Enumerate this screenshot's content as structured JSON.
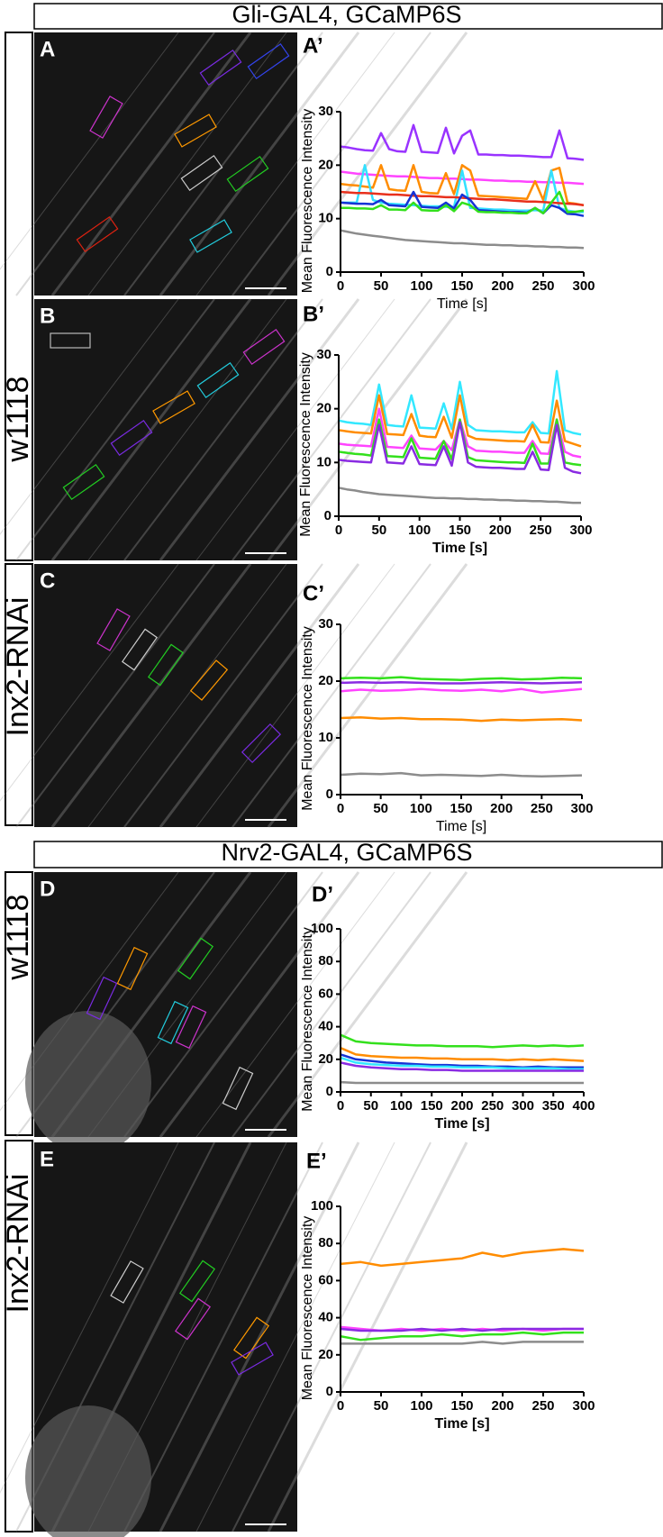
{
  "headers": [
    "Gli-GAL4, GCaMP6S",
    "Nrv2-GAL4, GCaMP6S"
  ],
  "row_labels": [
    "w1118",
    "Inx2-RNAi",
    "w1118",
    "Inx2-RNAi"
  ],
  "image_panels": [
    "A",
    "B",
    "C",
    "D",
    "E"
  ],
  "chart_data": [
    {
      "type": "line",
      "label": "A’",
      "xlabel": "Time [s]",
      "ylabel": "Mean Fluorescence Intensity",
      "x": [
        0,
        10,
        20,
        30,
        40,
        50,
        60,
        70,
        80,
        90,
        100,
        110,
        120,
        130,
        140,
        150,
        160,
        170,
        180,
        190,
        200,
        210,
        220,
        230,
        240,
        250,
        260,
        270,
        280,
        290,
        300
      ],
      "xlim": [
        0,
        300
      ],
      "xticks": [
        0,
        50,
        100,
        150,
        200,
        250,
        300
      ],
      "ylim": [
        0,
        30
      ],
      "yticks": [
        0,
        10,
        20,
        30
      ],
      "series": [
        {
          "color": "#9933ff",
          "values": [
            23.5,
            23.3,
            23,
            22.8,
            22.7,
            26,
            23,
            22.6,
            22.5,
            27.5,
            22.5,
            22.4,
            22.3,
            27,
            22.2,
            25.5,
            26.5,
            22,
            22,
            21.9,
            21.9,
            21.8,
            21.8,
            21.7,
            21.6,
            21.5,
            21.5,
            26.5,
            21.3,
            21.2,
            21
          ]
        },
        {
          "color": "#ff44ff",
          "values": [
            18.8,
            18.6,
            18.4,
            18.3,
            18.2,
            18.1,
            18,
            17.9,
            17.9,
            17.8,
            17.7,
            17.6,
            17.6,
            17.5,
            17.5,
            17.4,
            17.3,
            17.3,
            17.2,
            17.1,
            17.1,
            17,
            17,
            16.9,
            16.9,
            16.8,
            16.8,
            16.7,
            16.7,
            16.6,
            16.5
          ]
        },
        {
          "color": "#ff8c00",
          "values": [
            16.5,
            16.3,
            16.2,
            16,
            15.8,
            20,
            15.5,
            15.3,
            15.2,
            20,
            15,
            14.8,
            14.7,
            18.5,
            14.6,
            20,
            19,
            14.3,
            14.2,
            14.1,
            14,
            13.9,
            13.8,
            13.7,
            17,
            13.5,
            19,
            19.5,
            13,
            12.8,
            12.5
          ]
        },
        {
          "color": "#33e0ff",
          "values": [
            13,
            13,
            13,
            20,
            13.5,
            13,
            12.8,
            12.7,
            12.6,
            12.5,
            12.4,
            12.3,
            12.3,
            12.2,
            12.2,
            19,
            12,
            11.9,
            11.8,
            11.7,
            11.7,
            11.6,
            11.5,
            11.5,
            11.6,
            11.5,
            19,
            12,
            11.5,
            11.3,
            11.2
          ]
        },
        {
          "color": "#e8301c",
          "values": [
            15,
            14.9,
            14.8,
            14.8,
            14.7,
            14.6,
            14.5,
            14.5,
            14.4,
            14.3,
            14.2,
            14.2,
            14.1,
            14,
            14,
            13.9,
            13.8,
            13.7,
            13.6,
            13.6,
            13.5,
            13.4,
            13.3,
            13.2,
            13.2,
            13.1,
            13,
            12.9,
            12.8,
            12.7,
            12.5
          ]
        },
        {
          "color": "#1533d6",
          "values": [
            13,
            12.9,
            12.8,
            12.8,
            12.7,
            13.5,
            12.5,
            12.4,
            12.3,
            15,
            12.2,
            12.1,
            12,
            13,
            11.9,
            14.5,
            13.5,
            11.6,
            11.5,
            11.4,
            11.3,
            11.2,
            11.2,
            11.1,
            12,
            11,
            12.5,
            12,
            10.9,
            10.8,
            10.5
          ]
        },
        {
          "color": "#33e01c",
          "values": [
            12,
            12,
            11.9,
            11.9,
            11.8,
            12.5,
            11.7,
            11.7,
            11.6,
            13,
            11.6,
            11.5,
            11.5,
            12.5,
            11.4,
            13,
            12.5,
            11.3,
            11.2,
            11.2,
            11.1,
            11.1,
            11,
            11,
            12,
            11,
            13,
            15,
            11.2,
            11.3,
            11.5
          ]
        },
        {
          "color": "#8c8c8c",
          "values": [
            7.8,
            7.5,
            7.2,
            7,
            6.8,
            6.6,
            6.4,
            6.2,
            6,
            5.9,
            5.8,
            5.7,
            5.6,
            5.5,
            5.4,
            5.4,
            5.3,
            5.2,
            5.1,
            5.1,
            5,
            5,
            4.9,
            4.9,
            4.8,
            4.8,
            4.7,
            4.7,
            4.6,
            4.6,
            4.5
          ]
        }
      ]
    },
    {
      "type": "line",
      "label": "B’",
      "xlabel": "Time [s]",
      "ylabel": "Mean Fluorescence Intensity",
      "x": [
        0,
        10,
        20,
        30,
        40,
        50,
        60,
        70,
        80,
        90,
        100,
        110,
        120,
        130,
        140,
        150,
        160,
        170,
        180,
        190,
        200,
        210,
        220,
        230,
        240,
        250,
        260,
        270,
        280,
        290,
        300
      ],
      "xlim": [
        0,
        300
      ],
      "xticks": [
        0,
        50,
        100,
        150,
        200,
        250,
        300
      ],
      "ylim": [
        0,
        30
      ],
      "yticks": [
        0,
        10,
        20,
        30
      ],
      "series": [
        {
          "color": "#33e8ff",
          "values": [
            17.8,
            17.5,
            17.3,
            17.2,
            17,
            24.5,
            17,
            16.8,
            16.7,
            22.5,
            16.5,
            16.4,
            16.3,
            21,
            16.2,
            25,
            17,
            16,
            15.9,
            15.8,
            15.8,
            15.7,
            15.6,
            15.6,
            17.5,
            15.5,
            15.4,
            27,
            16,
            15.5,
            15.2
          ]
        },
        {
          "color": "#ff8c00",
          "values": [
            16,
            15.8,
            15.6,
            15.5,
            15.4,
            22.5,
            15.3,
            15.2,
            15.1,
            19,
            15,
            14.8,
            14.7,
            18.5,
            14.6,
            22.5,
            15,
            14.4,
            14.3,
            14.2,
            14.1,
            14,
            14,
            13.9,
            17,
            13.8,
            13.7,
            21.5,
            14,
            13.5,
            13
          ]
        },
        {
          "color": "#ff44ff",
          "values": [
            13.5,
            13.3,
            13.2,
            13.1,
            13,
            20,
            12.9,
            12.8,
            12.7,
            15,
            12.6,
            12.5,
            12.4,
            14,
            12.3,
            18,
            13,
            12.2,
            12.1,
            12,
            12,
            11.9,
            11.8,
            11.8,
            14,
            11.7,
            11.6,
            18,
            12,
            11.3,
            11
          ]
        },
        {
          "color": "#33e01c",
          "values": [
            12,
            11.8,
            11.6,
            11.5,
            11.3,
            18,
            11.2,
            11.1,
            11,
            14.5,
            10.9,
            10.8,
            10.7,
            14,
            10.6,
            18,
            11,
            10.4,
            10.3,
            10.2,
            10.1,
            10,
            10,
            9.9,
            13.5,
            9.8,
            9.8,
            18,
            10,
            9.7,
            9.5
          ]
        },
        {
          "color": "#8a2be2",
          "values": [
            10.5,
            10.3,
            10.2,
            10.1,
            10,
            17,
            10,
            9.9,
            9.8,
            13,
            9.7,
            9.6,
            9.5,
            13,
            9.4,
            17.5,
            10,
            9.2,
            9.1,
            9,
            9,
            8.9,
            8.8,
            8.8,
            12,
            8.7,
            8.6,
            17,
            9,
            8.3,
            8
          ]
        },
        {
          "color": "#8c8c8c",
          "values": [
            5.3,
            5,
            4.8,
            4.5,
            4.3,
            4.1,
            4,
            3.9,
            3.8,
            3.7,
            3.6,
            3.5,
            3.4,
            3.4,
            3.3,
            3.3,
            3.2,
            3.2,
            3.1,
            3.1,
            3,
            3,
            2.9,
            2.9,
            2.8,
            2.8,
            2.7,
            2.7,
            2.6,
            2.5,
            2.5
          ]
        }
      ]
    },
    {
      "type": "line",
      "label": "C’",
      "xlabel": "Time [s]",
      "ylabel": "Mean Fluorescence Intensity",
      "x": [
        0,
        25,
        50,
        75,
        100,
        125,
        150,
        175,
        200,
        225,
        250,
        275,
        300
      ],
      "xlim": [
        0,
        300
      ],
      "xticks": [
        0,
        50,
        100,
        150,
        200,
        250,
        300
      ],
      "ylim": [
        0,
        30
      ],
      "yticks": [
        0,
        10,
        20,
        30
      ],
      "series": [
        {
          "color": "#33e01c",
          "values": [
            20.5,
            20.6,
            20.5,
            20.7,
            20.4,
            20.3,
            20.2,
            20.4,
            20.5,
            20.3,
            20.4,
            20.6,
            20.5
          ]
        },
        {
          "color": "#8a2be2",
          "values": [
            19.7,
            19.8,
            19.7,
            19.8,
            19.7,
            19.6,
            19.6,
            19.7,
            19.8,
            19.7,
            19.6,
            19.7,
            19.8
          ]
        },
        {
          "color": "#ff44ff",
          "values": [
            18.2,
            18.5,
            18.3,
            18.4,
            18.6,
            18.4,
            18.3,
            18.5,
            18.2,
            18.6,
            18,
            18.3,
            18.6
          ]
        },
        {
          "color": "#ff8c00",
          "values": [
            13.5,
            13.6,
            13.4,
            13.5,
            13.3,
            13.3,
            13.2,
            13,
            13.2,
            13.1,
            13.2,
            13.3,
            13.1
          ]
        },
        {
          "color": "#8c8c8c",
          "values": [
            3.5,
            3.7,
            3.6,
            3.8,
            3.4,
            3.5,
            3.4,
            3.3,
            3.5,
            3.3,
            3.2,
            3.3,
            3.4
          ]
        }
      ]
    },
    {
      "type": "line",
      "label": "D’",
      "xlabel": "Time [s]",
      "ylabel": "Mean Fluorescence Intensity",
      "x": [
        0,
        25,
        50,
        75,
        100,
        125,
        150,
        175,
        200,
        225,
        250,
        275,
        300,
        325,
        350,
        375,
        400
      ],
      "xlim": [
        0,
        400
      ],
      "xticks": [
        0,
        50,
        100,
        150,
        200,
        250,
        300,
        350,
        400
      ],
      "ylim": [
        0,
        100
      ],
      "yticks": [
        0,
        20,
        40,
        60,
        80,
        100
      ],
      "series": [
        {
          "color": "#33e01c",
          "values": [
            35,
            31,
            30,
            29.5,
            29,
            28.5,
            28.5,
            28,
            28,
            28,
            27.5,
            28,
            28.5,
            28,
            28.5,
            28,
            28.5
          ]
        },
        {
          "color": "#ff8c00",
          "values": [
            27,
            23,
            22,
            21.5,
            21,
            21,
            20.5,
            20.5,
            20,
            20,
            20,
            19.5,
            20,
            19.5,
            20,
            19.5,
            19
          ]
        },
        {
          "color": "#1533d6",
          "values": [
            23,
            20,
            19,
            18,
            17.5,
            17,
            16.5,
            16.5,
            16,
            16,
            15.5,
            15.5,
            15,
            15.5,
            15,
            15,
            15
          ]
        },
        {
          "color": "#33e8ff",
          "values": [
            21,
            18,
            17,
            16.5,
            16,
            16,
            15.5,
            15.5,
            15,
            15,
            15,
            14.5,
            14.5,
            14.5,
            14.5,
            14,
            14
          ]
        },
        {
          "color": "#8a2be2",
          "values": [
            18,
            16,
            15,
            14.5,
            14,
            14,
            13.5,
            13.5,
            13,
            13,
            13,
            13,
            13,
            13,
            13,
            13,
            13
          ]
        },
        {
          "color": "#8c8c8c",
          "values": [
            6,
            5.5,
            5.5,
            5.5,
            5.5,
            5.5,
            5.5,
            5.5,
            5.5,
            5.5,
            5.5,
            5.5,
            5.5,
            5.5,
            5.5,
            5.5,
            5.5
          ]
        }
      ]
    },
    {
      "type": "line",
      "label": "E’",
      "xlabel": "Time [s]",
      "ylabel": "Mean Fluorescence Intensity",
      "x": [
        0,
        25,
        50,
        75,
        100,
        125,
        150,
        175,
        200,
        225,
        250,
        275,
        300
      ],
      "xlim": [
        0,
        300
      ],
      "xticks": [
        0,
        50,
        100,
        150,
        200,
        250,
        300
      ],
      "ylim": [
        0,
        100
      ],
      "yticks": [
        0,
        20,
        40,
        60,
        80,
        100
      ],
      "series": [
        {
          "color": "#ff8c00",
          "values": [
            69,
            70,
            68,
            69,
            70,
            71,
            72,
            75,
            73,
            75,
            76,
            77,
            76
          ]
        },
        {
          "color": "#ff44ff",
          "values": [
            35,
            34,
            33,
            34,
            33,
            34,
            33,
            34,
            33,
            34,
            33,
            34,
            34
          ]
        },
        {
          "color": "#8a2be2",
          "values": [
            34,
            33,
            33,
            33,
            34,
            33,
            34,
            33,
            34,
            34,
            34,
            34,
            34
          ]
        },
        {
          "color": "#33e01c",
          "values": [
            30,
            28,
            29,
            30,
            30,
            31,
            30,
            31,
            31,
            32,
            31,
            32,
            32
          ]
        },
        {
          "color": "#8c8c8c",
          "values": [
            26,
            26,
            26,
            26,
            26,
            26,
            26,
            27,
            26,
            27,
            27,
            27,
            27
          ]
        }
      ]
    }
  ]
}
